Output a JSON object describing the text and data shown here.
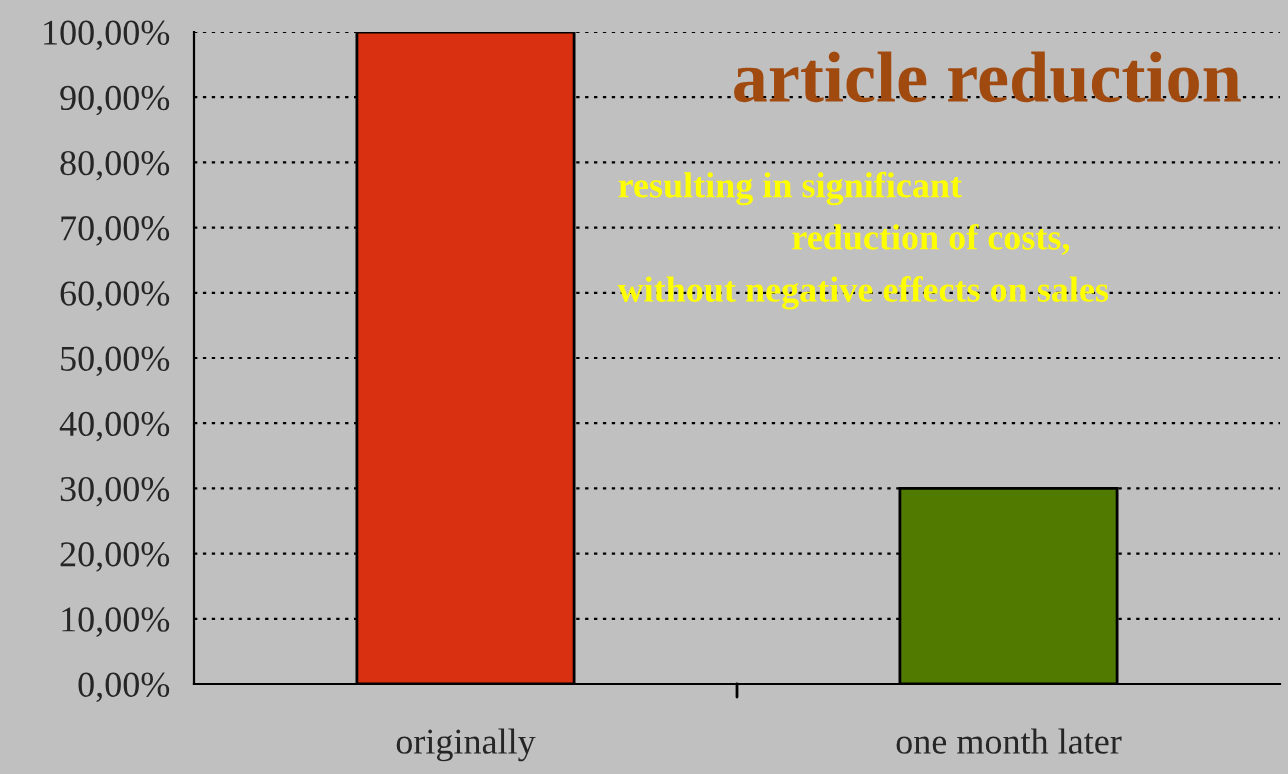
{
  "chart_data": {
    "type": "bar",
    "title": "article reduction",
    "categories": [
      "originally",
      "one month later"
    ],
    "values": [
      100,
      30
    ],
    "colors": [
      "#d83010",
      "#507a00"
    ],
    "ylim": [
      0,
      100
    ],
    "yticks": [
      {
        "value": 0,
        "label": "0,00%"
      },
      {
        "value": 10,
        "label": "10,00%"
      },
      {
        "value": 20,
        "label": "20,00%"
      },
      {
        "value": 30,
        "label": "30,00%"
      },
      {
        "value": 40,
        "label": "40,00%"
      },
      {
        "value": 50,
        "label": "50,00%"
      },
      {
        "value": 60,
        "label": "60,00%"
      },
      {
        "value": 70,
        "label": "70,00%"
      },
      {
        "value": 80,
        "label": "80,00%"
      },
      {
        "value": 90,
        "label": "90,00%"
      },
      {
        "value": 100,
        "label": "100,00%"
      }
    ],
    "grid": "y",
    "annotations": [
      "resulting in significant",
      "reduction of costs,",
      "without negative effects on sales"
    ]
  }
}
